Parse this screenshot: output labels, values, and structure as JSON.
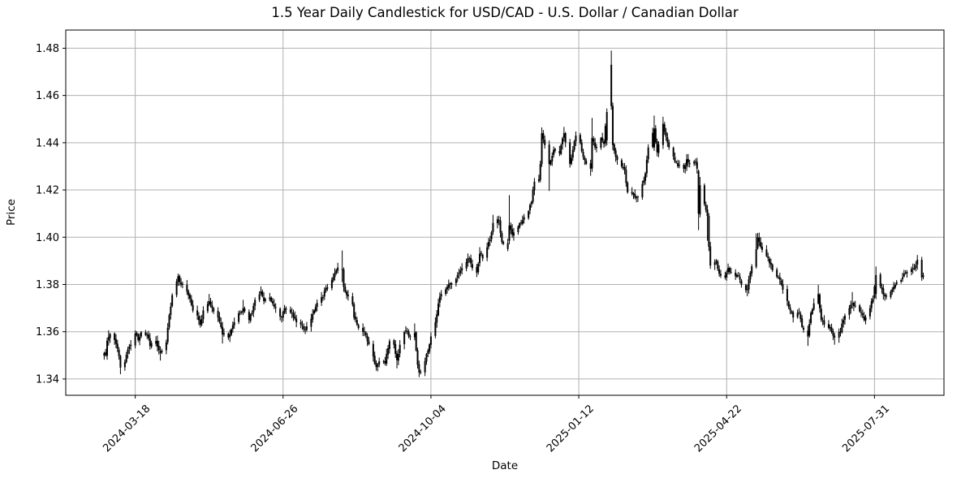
{
  "chart_data": {
    "type": "candlestick",
    "title": "1.5 Year Daily Candlestick for USD/CAD - U.S. Dollar / Canadian Dollar",
    "xlabel": "Date",
    "ylabel": "Price",
    "grid": true,
    "legend": "none",
    "ylim": [
      1.3331,
      1.4877
    ],
    "y_ticks": [
      1.34,
      1.36,
      1.38,
      1.4,
      1.42,
      1.44,
      1.46,
      1.48
    ],
    "y_tick_labels": [
      "1.34",
      "1.36",
      "1.38",
      "1.40",
      "1.42",
      "1.44",
      "1.46",
      "1.48"
    ],
    "xlim_dates": [
      "2024-01-31",
      "2025-09-16"
    ],
    "x_tick_dates": [
      "2024-03-18",
      "2024-06-26",
      "2024-10-04",
      "2025-01-12",
      "2025-04-22",
      "2025-07-31"
    ],
    "x_tick_labels": [
      "2024-03-18",
      "2024-06-26",
      "2024-10-04",
      "2025-01-12",
      "2025-04-22",
      "2025-07-31"
    ],
    "series_note": "Daily OHLC candles (weekdays), all drawn in black. close_anchors are values read from the plot: [date, close, high, low, open]; high/low/open given where a wick or body extreme is visually distinct. Daily candles between anchors follow the interpolated close path.",
    "overall_range": {
      "min_low": 1.3408,
      "max_high": 1.479,
      "start_close": 1.351,
      "end_close": 1.3838
    },
    "close_anchors": [
      [
        "2024-02-26",
        1.351
      ],
      [
        "2024-02-27",
        1.3502
      ],
      [
        "2024-02-28",
        1.3562
      ],
      [
        "2024-02-29",
        1.3578,
        1.3606
      ],
      [
        "2024-03-01",
        1.359
      ],
      [
        "2024-03-04",
        1.3565
      ],
      [
        "2024-03-06",
        1.3528
      ],
      [
        "2024-03-08",
        1.3448,
        null,
        1.342
      ],
      [
        "2024-03-11",
        1.3472
      ],
      [
        "2024-03-13",
        1.3525
      ],
      [
        "2024-03-15",
        1.3545
      ],
      [
        "2024-03-18",
        1.3592,
        1.3606
      ],
      [
        "2024-03-20",
        1.3565
      ],
      [
        "2024-03-22",
        1.3598
      ],
      [
        "2024-03-26",
        1.3588
      ],
      [
        "2024-03-28",
        1.354
      ],
      [
        "2024-04-01",
        1.356
      ],
      [
        "2024-04-04",
        1.351,
        null,
        1.3478
      ],
      [
        "2024-04-08",
        1.3555
      ],
      [
        "2024-04-10",
        1.367
      ],
      [
        "2024-04-12",
        1.3755
      ],
      [
        "2024-04-16",
        1.3835,
        1.3846
      ],
      [
        "2024-04-17",
        1.381
      ],
      [
        "2024-04-18",
        1.38
      ],
      [
        "2024-04-22",
        1.377
      ],
      [
        "2024-04-24",
        1.374
      ],
      [
        "2024-04-26",
        1.369
      ],
      [
        "2024-04-30",
        1.365
      ],
      [
        "2024-05-01",
        1.3628
      ],
      [
        "2024-05-03",
        1.369
      ],
      [
        "2024-05-07",
        1.373,
        1.376
      ],
      [
        "2024-05-09",
        1.37
      ],
      [
        "2024-05-13",
        1.366
      ],
      [
        "2024-05-15",
        1.362
      ],
      [
        "2024-05-16",
        1.3588,
        null,
        1.355
      ],
      [
        "2024-05-20",
        1.3575
      ],
      [
        "2024-05-22",
        1.361
      ],
      [
        "2024-05-24",
        1.364
      ],
      [
        "2024-05-28",
        1.368
      ],
      [
        "2024-05-30",
        1.37,
        1.3735
      ],
      [
        "2024-06-03",
        1.365
      ],
      [
        "2024-06-05",
        1.368
      ],
      [
        "2024-06-07",
        1.3735
      ],
      [
        "2024-06-11",
        1.377,
        1.3792
      ],
      [
        "2024-06-13",
        1.373
      ],
      [
        "2024-06-17",
        1.3745
      ],
      [
        "2024-06-19",
        1.372
      ],
      [
        "2024-06-21",
        1.37
      ],
      [
        "2024-06-25",
        1.366
      ],
      [
        "2024-06-27",
        1.37
      ],
      [
        "2024-07-02",
        1.368
      ],
      [
        "2024-07-05",
        1.364
      ],
      [
        "2024-07-09",
        1.3625
      ],
      [
        "2024-07-11",
        1.3608,
        null,
        1.359
      ],
      [
        "2024-07-15",
        1.3655
      ],
      [
        "2024-07-17",
        1.369
      ],
      [
        "2024-07-19",
        1.3722
      ],
      [
        "2024-07-23",
        1.3745
      ],
      [
        "2024-07-25",
        1.3785
      ],
      [
        "2024-07-29",
        1.382
      ],
      [
        "2024-07-31",
        1.385
      ],
      [
        "2024-08-02",
        1.3872,
        1.3892
      ],
      [
        "2024-08-05",
        1.3865,
        1.3944,
        1.381,
        1.3862
      ],
      [
        "2024-08-06",
        1.379
      ],
      [
        "2024-08-08",
        1.3755
      ],
      [
        "2024-08-12",
        1.3715
      ],
      [
        "2024-08-13",
        1.366
      ],
      [
        "2024-08-15",
        1.363
      ],
      [
        "2024-08-19",
        1.36
      ],
      [
        "2024-08-21",
        1.3585
      ],
      [
        "2024-08-22",
        1.356
      ],
      [
        "2024-08-26",
        1.3495
      ],
      [
        "2024-08-28",
        1.345,
        null,
        1.3435
      ],
      [
        "2024-08-30",
        1.3475
      ],
      [
        "2024-09-03",
        1.3465
      ],
      [
        "2024-09-05",
        1.353
      ],
      [
        "2024-09-06",
        1.356
      ],
      [
        "2024-09-09",
        1.3545
      ],
      [
        "2024-09-11",
        1.348,
        null,
        1.3445
      ],
      [
        "2024-09-13",
        1.3545
      ],
      [
        "2024-09-17",
        1.3605
      ],
      [
        "2024-09-19",
        1.358
      ],
      [
        "2024-09-23",
        1.3595,
        1.3635
      ],
      [
        "2024-09-25",
        1.346
      ],
      [
        "2024-09-26",
        1.3428,
        null,
        1.3408
      ],
      [
        "2024-09-30",
        1.3475
      ],
      [
        "2024-10-02",
        1.352
      ],
      [
        "2024-10-04",
        1.358
      ],
      [
        "2024-10-07",
        1.364
      ],
      [
        "2024-10-09",
        1.372
      ],
      [
        "2024-10-11",
        1.376
      ],
      [
        "2024-10-15",
        1.379
      ],
      [
        "2024-10-17",
        1.3805
      ],
      [
        "2024-10-22",
        1.384
      ],
      [
        "2024-10-24",
        1.386
      ],
      [
        "2024-10-28",
        1.3895
      ],
      [
        "2024-10-30",
        1.391
      ],
      [
        "2024-11-01",
        1.387
      ],
      [
        "2024-11-04",
        1.385
      ],
      [
        "2024-11-06",
        1.393,
        1.3958
      ],
      [
        "2024-11-08",
        1.391
      ],
      [
        "2024-11-12",
        1.398
      ],
      [
        "2024-11-13",
        1.399
      ],
      [
        "2024-11-15",
        1.406,
        1.4095
      ],
      [
        "2024-11-19",
        1.407
      ],
      [
        "2024-11-21",
        1.398
      ],
      [
        "2024-11-25",
        1.395
      ],
      [
        "2024-11-26",
        1.405,
        1.4178,
        null,
        1.3985
      ],
      [
        "2024-11-28",
        1.401
      ],
      [
        "2024-12-02",
        1.4045
      ],
      [
        "2024-12-04",
        1.406
      ],
      [
        "2024-12-06",
        1.4085
      ],
      [
        "2024-12-09",
        1.411
      ],
      [
        "2024-12-11",
        1.415
      ],
      [
        "2024-12-13",
        1.4235
      ],
      [
        "2024-12-16",
        1.4245
      ],
      [
        "2024-12-17",
        1.431
      ],
      [
        "2024-12-18",
        1.444,
        1.4465,
        null,
        1.431
      ],
      [
        "2024-12-19",
        1.4415
      ],
      [
        "2024-12-20",
        1.439
      ],
      [
        "2024-12-23",
        1.431,
        null,
        1.4196
      ],
      [
        "2024-12-26",
        1.437
      ],
      [
        "2024-12-30",
        1.4355
      ],
      [
        "2024-12-31",
        1.439
      ],
      [
        "2025-01-02",
        1.444,
        1.4467
      ],
      [
        "2025-01-06",
        1.431
      ],
      [
        "2025-01-08",
        1.437
      ],
      [
        "2025-01-10",
        1.443
      ],
      [
        "2025-01-13",
        1.44
      ],
      [
        "2025-01-15",
        1.434
      ],
      [
        "2025-01-17",
        1.431
      ],
      [
        "2025-01-20",
        1.429,
        null,
        1.426
      ],
      [
        "2025-01-21",
        1.442,
        1.4505
      ],
      [
        "2025-01-23",
        1.438
      ],
      [
        "2025-01-27",
        1.442
      ],
      [
        "2025-01-29",
        1.4395
      ],
      [
        "2025-01-31",
        1.453,
        1.4545,
        null,
        1.441
      ],
      [
        "2025-02-03",
        1.4555,
        1.479,
        1.454,
        1.473
      ],
      [
        "2025-02-04",
        1.439
      ],
      [
        "2025-02-06",
        1.434
      ],
      [
        "2025-02-10",
        1.43
      ],
      [
        "2025-02-12",
        1.4285
      ],
      [
        "2025-02-14",
        1.419
      ],
      [
        "2025-02-18",
        1.418
      ],
      [
        "2025-02-20",
        1.4165,
        null,
        1.4148
      ],
      [
        "2025-02-24",
        1.4225
      ],
      [
        "2025-02-26",
        1.427
      ],
      [
        "2025-02-28",
        1.438
      ],
      [
        "2025-03-04",
        1.446,
        1.4515,
        null,
        1.438
      ],
      [
        "2025-03-06",
        1.436
      ],
      [
        "2025-03-10",
        1.448,
        1.451
      ],
      [
        "2025-03-12",
        1.4425
      ],
      [
        "2025-03-14",
        1.438
      ],
      [
        "2025-03-18",
        1.432
      ],
      [
        "2025-03-20",
        1.43
      ],
      [
        "2025-03-24",
        1.429
      ],
      [
        "2025-03-26",
        1.433
      ],
      [
        "2025-03-28",
        1.431
      ],
      [
        "2025-04-01",
        1.432
      ],
      [
        "2025-04-02",
        1.429
      ],
      [
        "2025-04-03",
        1.41,
        null,
        1.403,
        1.428
      ],
      [
        "2025-04-04",
        1.422,
        1.4255
      ],
      [
        "2025-04-07",
        1.414
      ],
      [
        "2025-04-09",
        1.409,
        null,
        1.3985
      ],
      [
        "2025-04-10",
        1.396
      ],
      [
        "2025-04-11",
        1.388
      ],
      [
        "2025-04-15",
        1.39
      ],
      [
        "2025-04-17",
        1.3845
      ],
      [
        "2025-04-21",
        1.383
      ],
      [
        "2025-04-23",
        1.387
      ],
      [
        "2025-04-25",
        1.385
      ],
      [
        "2025-04-29",
        1.384
      ],
      [
        "2025-05-01",
        1.382
      ],
      [
        "2025-05-02",
        1.38
      ],
      [
        "2025-05-06",
        1.378,
        null,
        1.375
      ],
      [
        "2025-05-08",
        1.385
      ],
      [
        "2025-05-12",
        1.395,
        1.4016
      ],
      [
        "2025-05-13",
        1.4
      ],
      [
        "2025-05-15",
        1.396
      ],
      [
        "2025-05-19",
        1.392
      ],
      [
        "2025-05-21",
        1.389
      ],
      [
        "2025-05-23",
        1.386
      ],
      [
        "2025-05-27",
        1.383
      ],
      [
        "2025-05-29",
        1.38
      ],
      [
        "2025-06-02",
        1.373
      ],
      [
        "2025-06-04",
        1.369
      ],
      [
        "2025-06-06",
        1.366
      ],
      [
        "2025-06-10",
        1.368
      ],
      [
        "2025-06-12",
        1.362
      ],
      [
        "2025-06-16",
        1.358,
        null,
        1.354
      ],
      [
        "2025-06-18",
        1.368
      ],
      [
        "2025-06-20",
        1.372
      ],
      [
        "2025-06-23",
        1.376,
        1.3798
      ],
      [
        "2025-06-25",
        1.365
      ],
      [
        "2025-06-27",
        1.363
      ],
      [
        "2025-07-01",
        1.362
      ],
      [
        "2025-07-04",
        1.3575,
        null,
        1.3545
      ],
      [
        "2025-07-08",
        1.36
      ],
      [
        "2025-07-10",
        1.365
      ],
      [
        "2025-07-14",
        1.37
      ],
      [
        "2025-07-16",
        1.372,
        1.3768
      ],
      [
        "2025-07-18",
        1.371
      ],
      [
        "2025-07-22",
        1.368
      ],
      [
        "2025-07-24",
        1.365
      ],
      [
        "2025-07-28",
        1.37
      ],
      [
        "2025-07-30",
        1.374
      ],
      [
        "2025-08-01",
        1.384,
        1.3876,
        null,
        1.376
      ],
      [
        "2025-08-05",
        1.378
      ],
      [
        "2025-08-07",
        1.375
      ],
      [
        "2025-08-11",
        1.377
      ],
      [
        "2025-08-13",
        1.379
      ],
      [
        "2025-08-15",
        1.381
      ],
      [
        "2025-08-19",
        1.383
      ],
      [
        "2025-08-21",
        1.385
      ],
      [
        "2025-08-25",
        1.3865
      ],
      [
        "2025-08-27",
        1.387
      ],
      [
        "2025-08-29",
        1.3905,
        1.3925
      ],
      [
        "2025-09-01",
        1.383
      ],
      [
        "2025-09-02",
        1.3838,
        1.385,
        1.3822,
        1.3832
      ]
    ],
    "colors": {
      "candle": "#000000",
      "grid": "#b0b0b0",
      "axis": "#000000",
      "background": "#ffffff",
      "text": "#000000"
    }
  }
}
